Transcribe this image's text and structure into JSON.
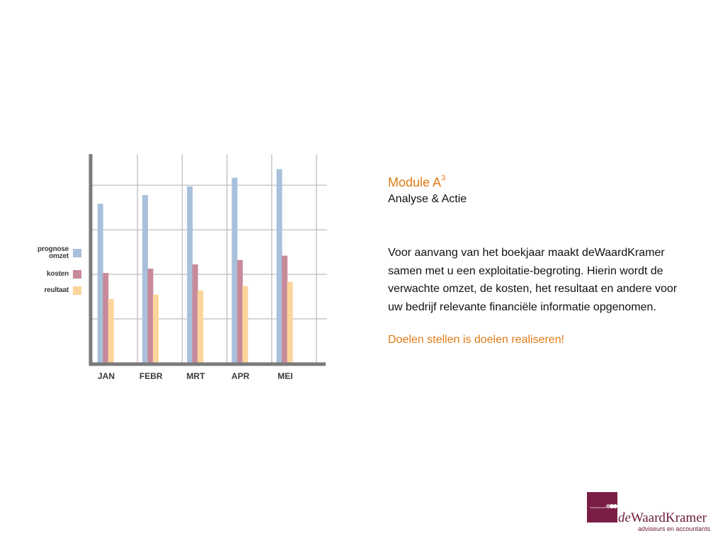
{
  "chart_data": {
    "type": "bar",
    "categories": [
      "JAN",
      "FEBR",
      "MRT",
      "APR",
      "MEI"
    ],
    "series": [
      {
        "name": "prognose omzet",
        "color": "#a8c0dc",
        "values": [
          3.7,
          3.9,
          4.1,
          4.3,
          4.5
        ]
      },
      {
        "name": "kosten",
        "color": "#c78a9a",
        "values": [
          2.1,
          2.2,
          2.3,
          2.4,
          2.5
        ]
      },
      {
        "name": "reultaat",
        "color": "#fbd59c",
        "values": [
          1.5,
          1.6,
          1.7,
          1.8,
          1.9
        ]
      }
    ],
    "ylim": [
      0,
      4.85
    ],
    "grid": true,
    "legend_position": "left",
    "title": "",
    "xlabel": "",
    "ylabel": ""
  },
  "legend": [
    {
      "label_lines": [
        "prognose",
        "omzet"
      ],
      "color": "#a8c0dc"
    },
    {
      "label_lines": [
        "kosten"
      ],
      "color": "#c78a9a"
    },
    {
      "label_lines": [
        "reultaat"
      ],
      "color": "#fbd59c"
    }
  ],
  "text": {
    "title": "Module A",
    "title_sup": "3",
    "subtitle": "Analyse & Actie",
    "body": "Voor aanvang van het boekjaar maakt deWaardKramer samen met u een exploitatie-begroting. Hierin wordt de verwachte omzet, de kosten, het resultaat en andere voor uw bedrijf relevante financiële informatie opgenomen.",
    "slogan": "Doelen stellen is doelen realiseren!"
  },
  "logo": {
    "name_prefix": "de",
    "name_main": "WaardKramer",
    "tagline": "adviseurs en accountants",
    "color": "#7a1e45"
  }
}
